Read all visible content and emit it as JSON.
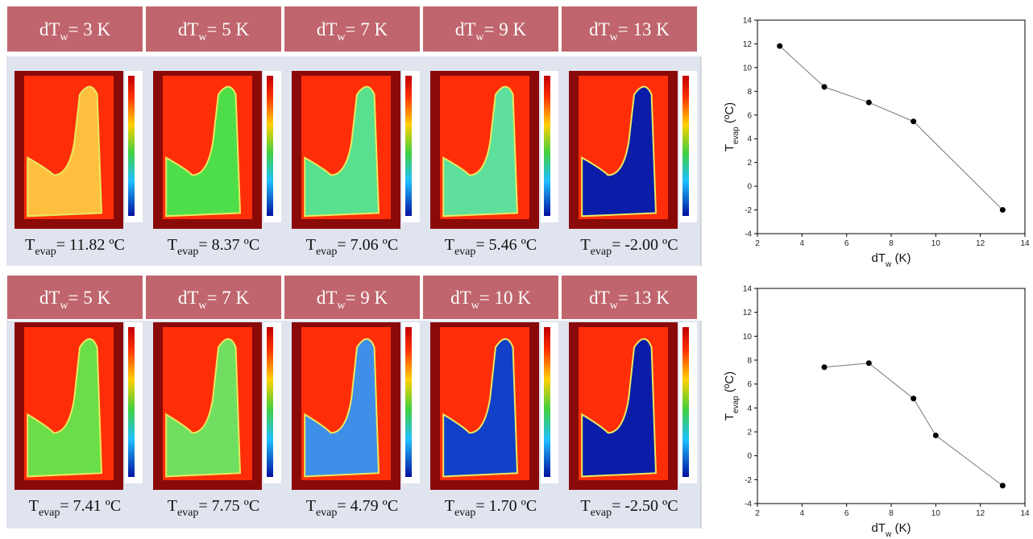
{
  "panels": [
    {
      "headers": [
        {
          "main": "dT",
          "sub": "w",
          "rest": "= 3 K"
        },
        {
          "main": "dT",
          "sub": "w",
          "rest": "= 5 K"
        },
        {
          "main": "dT",
          "sub": "w",
          "rest": "= 7 K"
        },
        {
          "main": "dT",
          "sub": "w",
          "rest": "= 9 K"
        },
        {
          "main": "dT",
          "sub": "w",
          "rest": "= 13 K"
        }
      ],
      "captions": [
        {
          "main": "T",
          "sub": "evap",
          "rest": "= 11.82 ºC"
        },
        {
          "main": "T",
          "sub": "evap",
          "rest": "= 8.37 ºC"
        },
        {
          "main": "T",
          "sub": "evap",
          "rest": "= 7.06 ºC"
        },
        {
          "main": "T",
          "sub": "evap",
          "rest": "= 5.46 ºC"
        },
        {
          "main": "T",
          "sub": "evap",
          "rest": "= -2.00 ºC"
        }
      ]
    },
    {
      "headers": [
        {
          "main": "dT",
          "sub": "w",
          "rest": "= 5 K"
        },
        {
          "main": "dT",
          "sub": "w",
          "rest": "= 7 K"
        },
        {
          "main": "dT",
          "sub": "w",
          "rest": "= 9 K"
        },
        {
          "main": "dT",
          "sub": "w",
          "rest": "= 10 K"
        },
        {
          "main": "dT",
          "sub": "w",
          "rest": "= 13 K"
        }
      ],
      "captions": [
        {
          "main": "T",
          "sub": "evap",
          "rest": "= 7.41 ºC"
        },
        {
          "main": "T",
          "sub": "evap",
          "rest": "= 7.75 ºC"
        },
        {
          "main": "T",
          "sub": "evap",
          "rest": "= 4.79 ºC"
        },
        {
          "main": "T",
          "sub": "evap",
          "rest": "= 1.70 ºC"
        },
        {
          "main": "T",
          "sub": "evap",
          "rest": "= -2.50 ºC"
        }
      ]
    }
  ],
  "chart_data": [
    {
      "type": "line",
      "x": [
        3,
        5,
        7,
        9,
        13
      ],
      "values": [
        11.82,
        8.37,
        7.06,
        5.46,
        -2.0
      ],
      "color": "#000000",
      "xlim": [
        2,
        14
      ],
      "xticks": [
        2,
        4,
        6,
        8,
        10,
        12,
        14
      ],
      "ylim": [
        -4,
        14
      ],
      "yticks": [
        -4,
        -2,
        0,
        2,
        4,
        6,
        8,
        10,
        12,
        14
      ],
      "grid": false,
      "xlabel": {
        "main": "dT",
        "sub": "w",
        "rest": " (K)"
      },
      "ylabel": {
        "main": "T",
        "sub": "evap",
        "rest": " (ºC)"
      }
    },
    {
      "type": "line",
      "x": [
        5,
        7,
        9,
        10,
        13
      ],
      "values": [
        7.41,
        7.75,
        4.79,
        1.7,
        -2.5
      ],
      "color": "#000000",
      "xlim": [
        2,
        14
      ],
      "xticks": [
        2,
        4,
        6,
        8,
        10,
        12,
        14
      ],
      "ylim": [
        -4,
        14
      ],
      "yticks": [
        -4,
        -2,
        0,
        2,
        4,
        6,
        8,
        10,
        12,
        14
      ],
      "grid": false,
      "xlabel": {
        "main": "dT",
        "sub": "w",
        "rest": " (K)"
      },
      "ylabel": {
        "main": "T",
        "sub": "evap",
        "rest": " (ºC)"
      }
    }
  ]
}
